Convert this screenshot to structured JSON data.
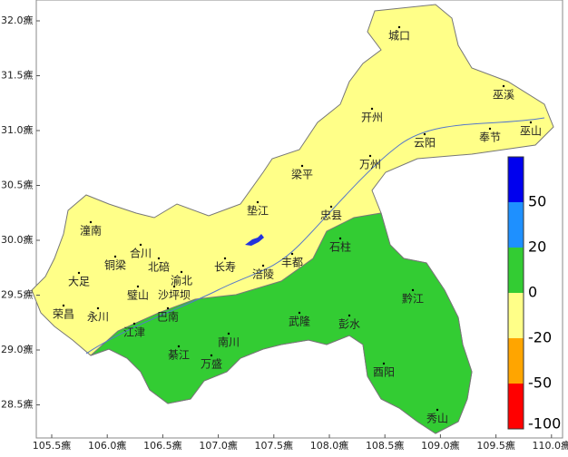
{
  "map": {
    "x_axis": {
      "ticks": [
        {
          "value": 105.5,
          "label": "105.5癄"
        },
        {
          "value": 106.0,
          "label": "106.0癄"
        },
        {
          "value": 106.5,
          "label": "106.5癄"
        },
        {
          "value": 107.0,
          "label": "107.0癄"
        },
        {
          "value": 107.5,
          "label": "107.5癄"
        },
        {
          "value": 108.0,
          "label": "108.0癄"
        },
        {
          "value": 108.5,
          "label": "108.5癄"
        },
        {
          "value": 109.0,
          "label": "109.0癄"
        },
        {
          "value": 109.5,
          "label": "109.5癄"
        },
        {
          "value": 110.0,
          "label": "110.0癄"
        }
      ]
    },
    "y_axis": {
      "ticks": [
        {
          "value": 32.0,
          "label": "32.0癄"
        },
        {
          "value": 31.5,
          "label": "31.5癄"
        },
        {
          "value": 31.0,
          "label": "31.0癄"
        },
        {
          "value": 30.5,
          "label": "30.5癄"
        },
        {
          "value": 30.0,
          "label": "30.0癄"
        },
        {
          "value": 29.5,
          "label": "29.5癄"
        },
        {
          "value": 29.0,
          "label": "29.0癄"
        },
        {
          "value": 28.5,
          "label": "28.5癄"
        }
      ]
    },
    "cities": [
      "城口",
      "巫溪",
      "开州",
      "云阳",
      "奉节",
      "巫山",
      "万州",
      "梁平",
      "垫江",
      "忠县",
      "潼南",
      "合川",
      "石柱",
      "铜梁",
      "北碚",
      "长寿",
      "丰都",
      "涪陵",
      "大足",
      "渝北",
      "璧山",
      "沙坪坝",
      "巴南",
      "荣昌",
      "永川",
      "黔江",
      "武隆",
      "彭水",
      "江津",
      "南川",
      "綦江",
      "万盛",
      "酉阳",
      "秀山"
    ],
    "colorbar": {
      "colors": [
        "#0000ee",
        "#1e90ff",
        "#33cc33",
        "#ffff88",
        "#ffa500",
        "#ff0000"
      ],
      "labels": [
        "50",
        "20",
        "0",
        "-20",
        "-50",
        "-100"
      ]
    }
  }
}
